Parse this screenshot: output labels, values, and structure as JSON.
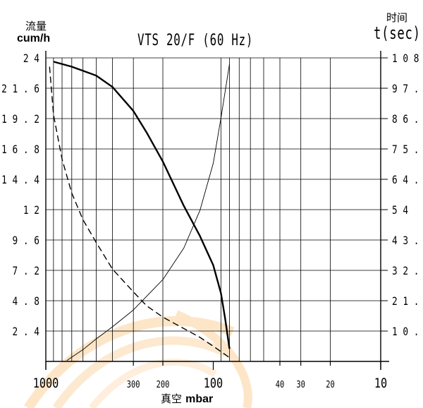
{
  "chart_data": {
    "type": "line",
    "title": "VTS 20/F (60 Hz)",
    "y_left_label_cn": "流量",
    "y_left_label_unit": "cum/h",
    "y_right_label_cn": "时间",
    "y_right_label_unit": "t(sec)",
    "x_label_cn": "真空",
    "x_label_unit": "mbar",
    "x_scale": "log",
    "x_reversed": true,
    "xlim": [
      1000,
      10
    ],
    "x_ticks": [
      {
        "value": 1000,
        "label": "1000",
        "major": true
      },
      {
        "value": 300,
        "label": "300",
        "major": false
      },
      {
        "value": 200,
        "label": "200",
        "major": false
      },
      {
        "value": 100,
        "label": "100",
        "major": true
      },
      {
        "value": 40,
        "label": "40",
        "major": false
      },
      {
        "value": 30,
        "label": "30",
        "major": false
      },
      {
        "value": 20,
        "label": "20",
        "major": false
      },
      {
        "value": 10,
        "label": "10",
        "major": true
      }
    ],
    "x_gridlines": [
      900,
      800,
      700,
      600,
      500,
      400,
      300,
      200,
      90,
      80,
      70,
      60,
      50,
      40,
      30,
      20
    ],
    "y_left_lim": [
      0,
      24
    ],
    "y_left_ticks": [
      "2.4",
      "4.8",
      "7.2",
      "9.6",
      "12",
      "14.4",
      "16.8",
      "19.2",
      "21.6",
      "24"
    ],
    "y_right_lim": [
      0,
      108
    ],
    "y_right_ticks": [
      "10.8",
      "21.6",
      "32.4",
      "43.2",
      "54",
      "64.8",
      "75.6",
      "86.4",
      "97.2",
      "108"
    ],
    "grid": true,
    "series": [
      {
        "style": "thick-solid",
        "axis": "left",
        "points": [
          [
            900,
            23.7
          ],
          [
            700,
            23.3
          ],
          [
            500,
            22.6
          ],
          [
            400,
            21.7
          ],
          [
            300,
            19.8
          ],
          [
            250,
            18.1
          ],
          [
            200,
            15.8
          ],
          [
            150,
            12.3
          ],
          [
            120,
            9.9
          ],
          [
            100,
            7.6
          ],
          [
            90,
            5.4
          ],
          [
            85,
            3.4
          ],
          [
            80,
            1.0
          ]
        ]
      },
      {
        "style": "dashed",
        "axis": "left",
        "points": [
          [
            950,
            23.3
          ],
          [
            900,
            19.5
          ],
          [
            800,
            16.0
          ],
          [
            700,
            13.3
          ],
          [
            600,
            11.2
          ],
          [
            500,
            9.4
          ],
          [
            400,
            7.3
          ],
          [
            300,
            5.5
          ],
          [
            250,
            4.4
          ],
          [
            200,
            3.5
          ],
          [
            150,
            2.6
          ],
          [
            120,
            1.9
          ],
          [
            100,
            1.2
          ],
          [
            80,
            0.3
          ]
        ]
      },
      {
        "style": "thin-solid",
        "axis": "right",
        "points": [
          [
            750,
            0.3
          ],
          [
            600,
            4.2
          ],
          [
            500,
            8.0
          ],
          [
            400,
            12.3
          ],
          [
            300,
            18.3
          ],
          [
            200,
            29.1
          ],
          [
            150,
            40.3
          ],
          [
            120,
            53.8
          ],
          [
            100,
            70.5
          ],
          [
            90,
            86.6
          ],
          [
            80,
            105.8
          ]
        ]
      }
    ]
  }
}
